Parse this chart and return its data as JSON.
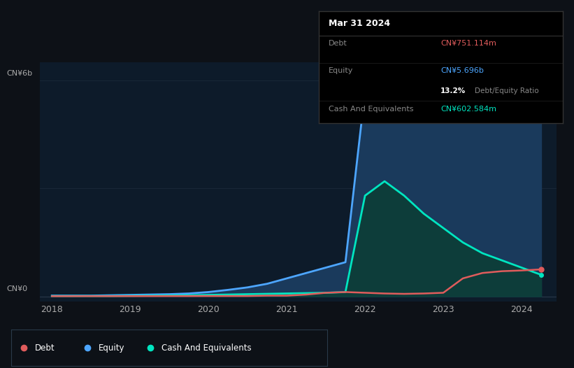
{
  "bg_color": "#0d1117",
  "plot_bg_color": "#0d1b2a",
  "debt_color": "#e05c5c",
  "equity_color": "#4da6ff",
  "cash_color": "#00e5c0",
  "equity_fill_color": "#1a3a5c",
  "cash_fill_color": "#0d3d3a",
  "ylabel_top": "CN¥6b",
  "ylabel_bottom": "CN¥0",
  "years": [
    2018,
    2018.25,
    2018.5,
    2018.75,
    2019,
    2019.25,
    2019.5,
    2019.75,
    2020,
    2020.25,
    2020.5,
    2020.75,
    2021,
    2021.25,
    2021.5,
    2021.75,
    2022,
    2022.25,
    2022.5,
    2022.75,
    2023,
    2023.25,
    2023.5,
    2023.75,
    2024,
    2024.25
  ],
  "equity_values": [
    0.02,
    0.02,
    0.02,
    0.03,
    0.04,
    0.05,
    0.06,
    0.08,
    0.12,
    0.18,
    0.25,
    0.35,
    0.5,
    0.65,
    0.8,
    0.95,
    5.7,
    5.8,
    5.75,
    5.7,
    5.9,
    6.1,
    6.2,
    6.1,
    5.8,
    5.7
  ],
  "debt_values": [
    0.005,
    0.005,
    0.006,
    0.006,
    0.007,
    0.007,
    0.008,
    0.008,
    0.01,
    0.01,
    0.01,
    0.02,
    0.02,
    0.05,
    0.1,
    0.12,
    0.1,
    0.08,
    0.07,
    0.08,
    0.1,
    0.5,
    0.65,
    0.7,
    0.72,
    0.75
  ],
  "cash_values": [
    0.01,
    0.01,
    0.01,
    0.01,
    0.015,
    0.02,
    0.025,
    0.03,
    0.04,
    0.05,
    0.06,
    0.07,
    0.08,
    0.09,
    0.1,
    0.12,
    2.8,
    3.2,
    2.8,
    2.3,
    1.9,
    1.5,
    1.2,
    1.0,
    0.8,
    0.6
  ],
  "xlim": [
    2017.85,
    2024.45
  ],
  "ylim": [
    -0.15,
    6.5
  ],
  "xticks": [
    2018,
    2019,
    2020,
    2021,
    2022,
    2023,
    2024
  ],
  "xtick_labels": [
    "2018",
    "2019",
    "2020",
    "2021",
    "2022",
    "2023",
    "2024"
  ],
  "tooltip_title": "Mar 31 2024",
  "tooltip_debt_label": "Debt",
  "tooltip_debt_value": "CN¥751.114m",
  "tooltip_equity_label": "Equity",
  "tooltip_equity_value": "CN¥5.696b",
  "tooltip_ratio_pct": "13.2%",
  "tooltip_ratio_label": "Debt/Equity Ratio",
  "tooltip_cash_label": "Cash And Equivalents",
  "tooltip_cash_value": "CN¥602.584m",
  "legend_items": [
    {
      "label": "Debt",
      "color": "#e05c5c"
    },
    {
      "label": "Equity",
      "color": "#4da6ff"
    },
    {
      "label": "Cash And Equivalents",
      "color": "#00e5c0"
    }
  ]
}
